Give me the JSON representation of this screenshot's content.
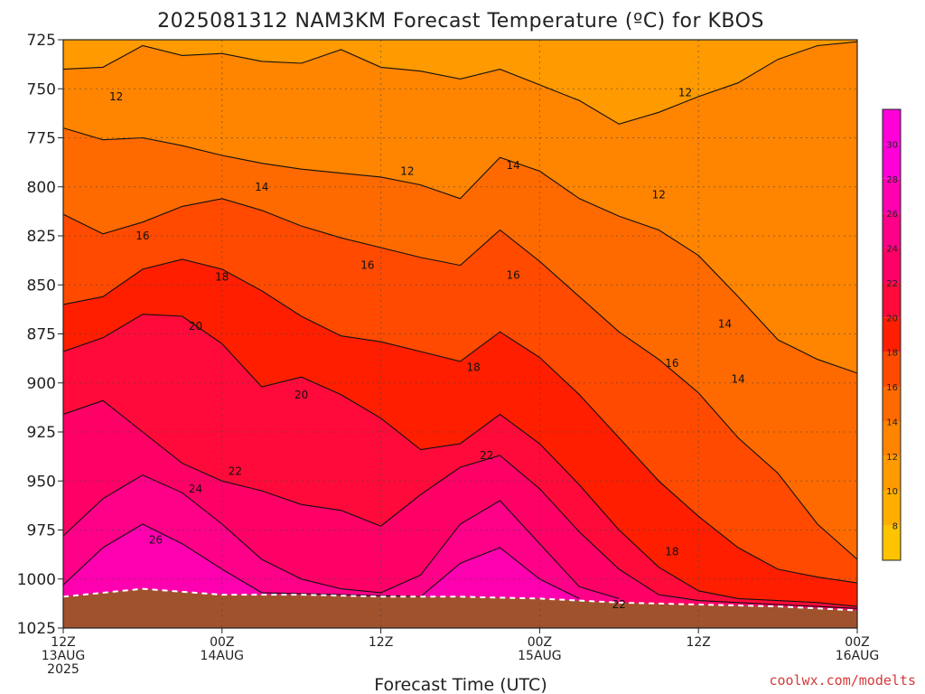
{
  "title": "2025081312 NAM3KM Forecast Temperature (ºC) for KBOS",
  "credit": "coolwx.com/modelts",
  "colors": {
    "ground": "#a0522d",
    "bands": [
      "#ffc400",
      "#ffae00",
      "#ff9a00",
      "#ff8400",
      "#ff6a00",
      "#ff4a00",
      "#ff1e00",
      "#ff0a3a",
      "#ff0066",
      "#ff0088",
      "#ff00b0",
      "#ff00d8"
    ]
  },
  "chart_data": {
    "type": "heatmap",
    "variable": "Temperature (ºC)",
    "xlabel": "Forecast Time (UTC)",
    "ylabel": "",
    "y_axis": {
      "ticks": [
        725,
        750,
        775,
        800,
        825,
        850,
        875,
        900,
        925,
        950,
        975,
        1000,
        1025
      ],
      "range": [
        725,
        1025
      ],
      "inverted": true
    },
    "x_axis": {
      "range_hours": [
        0,
        60
      ],
      "ticks": [
        {
          "hour": 0,
          "line1": "12Z",
          "line2": "13AUG",
          "line3": "2025"
        },
        {
          "hour": 12,
          "line1": "00Z",
          "line2": "14AUG",
          "line3": ""
        },
        {
          "hour": 24,
          "line1": "12Z",
          "line2": "",
          "line3": ""
        },
        {
          "hour": 36,
          "line1": "00Z",
          "line2": "15AUG",
          "line3": ""
        },
        {
          "hour": 48,
          "line1": "12Z",
          "line2": "",
          "line3": ""
        },
        {
          "hour": 60,
          "line1": "00Z",
          "line2": "16AUG",
          "line3": ""
        }
      ]
    },
    "grid": true,
    "colorbar": {
      "ticks": [
        8,
        10,
        12,
        14,
        16,
        18,
        20,
        22,
        24,
        26,
        28,
        30
      ],
      "range": [
        6,
        32
      ]
    },
    "surface_pressure": [
      [
        0,
        1009
      ],
      [
        6,
        1005
      ],
      [
        12,
        1008
      ],
      [
        18,
        1008
      ],
      [
        24,
        1009
      ],
      [
        30,
        1009
      ],
      [
        36,
        1010
      ],
      [
        42,
        1012
      ],
      [
        48,
        1013
      ],
      [
        54,
        1014
      ],
      [
        60,
        1016
      ]
    ],
    "isotherms": [
      {
        "value": 12,
        "points": [
          [
            0,
            740
          ],
          [
            3,
            739
          ],
          [
            6,
            728
          ],
          [
            9,
            733
          ],
          [
            12,
            732
          ],
          [
            15,
            736
          ],
          [
            18,
            737
          ],
          [
            21,
            730
          ],
          [
            24,
            739
          ],
          [
            27,
            741
          ],
          [
            30,
            745
          ],
          [
            33,
            740
          ],
          [
            36,
            748
          ],
          [
            39,
            756
          ],
          [
            42,
            768
          ],
          [
            45,
            762
          ],
          [
            48,
            754
          ],
          [
            51,
            747
          ],
          [
            54,
            735
          ],
          [
            57,
            728
          ],
          [
            60,
            726
          ]
        ]
      },
      {
        "value": 14,
        "points": [
          [
            0,
            770
          ],
          [
            3,
            776
          ],
          [
            6,
            775
          ],
          [
            9,
            779
          ],
          [
            12,
            784
          ],
          [
            15,
            788
          ],
          [
            18,
            791
          ],
          [
            21,
            793
          ],
          [
            24,
            795
          ],
          [
            27,
            799
          ],
          [
            30,
            806
          ],
          [
            33,
            785
          ],
          [
            36,
            792
          ],
          [
            39,
            806
          ],
          [
            42,
            815
          ],
          [
            45,
            822
          ],
          [
            48,
            835
          ],
          [
            51,
            856
          ],
          [
            54,
            878
          ],
          [
            57,
            888
          ],
          [
            60,
            895
          ]
        ]
      },
      {
        "value": 16,
        "points": [
          [
            0,
            814
          ],
          [
            3,
            824
          ],
          [
            6,
            818
          ],
          [
            9,
            810
          ],
          [
            12,
            806
          ],
          [
            15,
            812
          ],
          [
            18,
            820
          ],
          [
            21,
            826
          ],
          [
            24,
            831
          ],
          [
            27,
            836
          ],
          [
            30,
            840
          ],
          [
            33,
            822
          ],
          [
            36,
            838
          ],
          [
            39,
            856
          ],
          [
            42,
            874
          ],
          [
            45,
            888
          ],
          [
            48,
            905
          ],
          [
            51,
            928
          ],
          [
            54,
            946
          ],
          [
            57,
            972
          ],
          [
            60,
            990
          ]
        ]
      },
      {
        "value": 18,
        "points": [
          [
            0,
            860
          ],
          [
            3,
            856
          ],
          [
            6,
            842
          ],
          [
            9,
            837
          ],
          [
            12,
            842
          ],
          [
            15,
            853
          ],
          [
            18,
            866
          ],
          [
            21,
            876
          ],
          [
            24,
            879
          ],
          [
            27,
            884
          ],
          [
            30,
            889
          ],
          [
            33,
            874
          ],
          [
            36,
            887
          ],
          [
            39,
            906
          ],
          [
            42,
            928
          ],
          [
            45,
            950
          ],
          [
            48,
            968
          ],
          [
            51,
            984
          ],
          [
            54,
            995
          ],
          [
            57,
            999
          ],
          [
            60,
            1002
          ]
        ]
      },
      {
        "value": 20,
        "points": [
          [
            0,
            884
          ],
          [
            3,
            877
          ],
          [
            6,
            865
          ],
          [
            9,
            866
          ],
          [
            12,
            880
          ],
          [
            15,
            902
          ],
          [
            18,
            897
          ],
          [
            21,
            906
          ],
          [
            24,
            918
          ],
          [
            27,
            934
          ],
          [
            30,
            931
          ],
          [
            33,
            916
          ],
          [
            36,
            931
          ],
          [
            39,
            952
          ],
          [
            42,
            975
          ],
          [
            45,
            994
          ],
          [
            48,
            1006
          ],
          [
            51,
            1010
          ],
          [
            54,
            1011
          ],
          [
            57,
            1012
          ],
          [
            60,
            1014
          ]
        ]
      },
      {
        "value": 22,
        "points": [
          [
            0,
            916
          ],
          [
            3,
            909
          ],
          [
            6,
            925
          ],
          [
            9,
            941
          ],
          [
            12,
            950
          ],
          [
            15,
            955
          ],
          [
            18,
            962
          ],
          [
            21,
            965
          ],
          [
            24,
            973
          ],
          [
            27,
            957
          ],
          [
            30,
            943
          ],
          [
            33,
            937
          ],
          [
            36,
            954
          ],
          [
            39,
            976
          ],
          [
            42,
            995
          ],
          [
            45,
            1008
          ],
          [
            48,
            1011
          ],
          [
            51,
            1012
          ],
          [
            54,
            1013
          ],
          [
            57,
            1014
          ],
          [
            60,
            1015
          ]
        ]
      },
      {
        "value": 24,
        "points": [
          [
            0,
            978
          ],
          [
            3,
            959
          ],
          [
            6,
            947
          ],
          [
            9,
            956
          ],
          [
            12,
            972
          ],
          [
            15,
            990
          ],
          [
            18,
            1000
          ],
          [
            21,
            1005
          ],
          [
            24,
            1007
          ],
          [
            27,
            998
          ],
          [
            30,
            972
          ],
          [
            33,
            960
          ],
          [
            36,
            982
          ],
          [
            39,
            1004
          ],
          [
            42,
            1010
          ]
        ]
      },
      {
        "value": 26,
        "points": [
          [
            0,
            1003
          ],
          [
            3,
            984
          ],
          [
            6,
            972
          ],
          [
            9,
            982
          ],
          [
            12,
            995
          ],
          [
            15,
            1007
          ],
          [
            27,
            1009
          ],
          [
            30,
            992
          ],
          [
            33,
            984
          ],
          [
            36,
            1000
          ],
          [
            39,
            1010
          ]
        ]
      }
    ],
    "labels": [
      {
        "text": "12",
        "hour": 4,
        "p": 754
      },
      {
        "text": "12",
        "hour": 26,
        "p": 792
      },
      {
        "text": "12",
        "hour": 45,
        "p": 804
      },
      {
        "text": "12",
        "hour": 47,
        "p": 752
      },
      {
        "text": "14",
        "hour": 15,
        "p": 800
      },
      {
        "text": "14",
        "hour": 34,
        "p": 789
      },
      {
        "text": "14",
        "hour": 50,
        "p": 870
      },
      {
        "text": "14",
        "hour": 51,
        "p": 898
      },
      {
        "text": "16",
        "hour": 6,
        "p": 825
      },
      {
        "text": "16",
        "hour": 23,
        "p": 840
      },
      {
        "text": "16",
        "hour": 34,
        "p": 845
      },
      {
        "text": "16",
        "hour": 46,
        "p": 890
      },
      {
        "text": "18",
        "hour": 12,
        "p": 846
      },
      {
        "text": "18",
        "hour": 31,
        "p": 892
      },
      {
        "text": "18",
        "hour": 46,
        "p": 986
      },
      {
        "text": "20",
        "hour": 10,
        "p": 871
      },
      {
        "text": "20",
        "hour": 18,
        "p": 906
      },
      {
        "text": "22",
        "hour": 13,
        "p": 945
      },
      {
        "text": "22",
        "hour": 32,
        "p": 937
      },
      {
        "text": "22",
        "hour": 42,
        "p": 1013
      },
      {
        "text": "24",
        "hour": 10,
        "p": 954
      },
      {
        "text": "26",
        "hour": 7,
        "p": 980
      }
    ]
  }
}
